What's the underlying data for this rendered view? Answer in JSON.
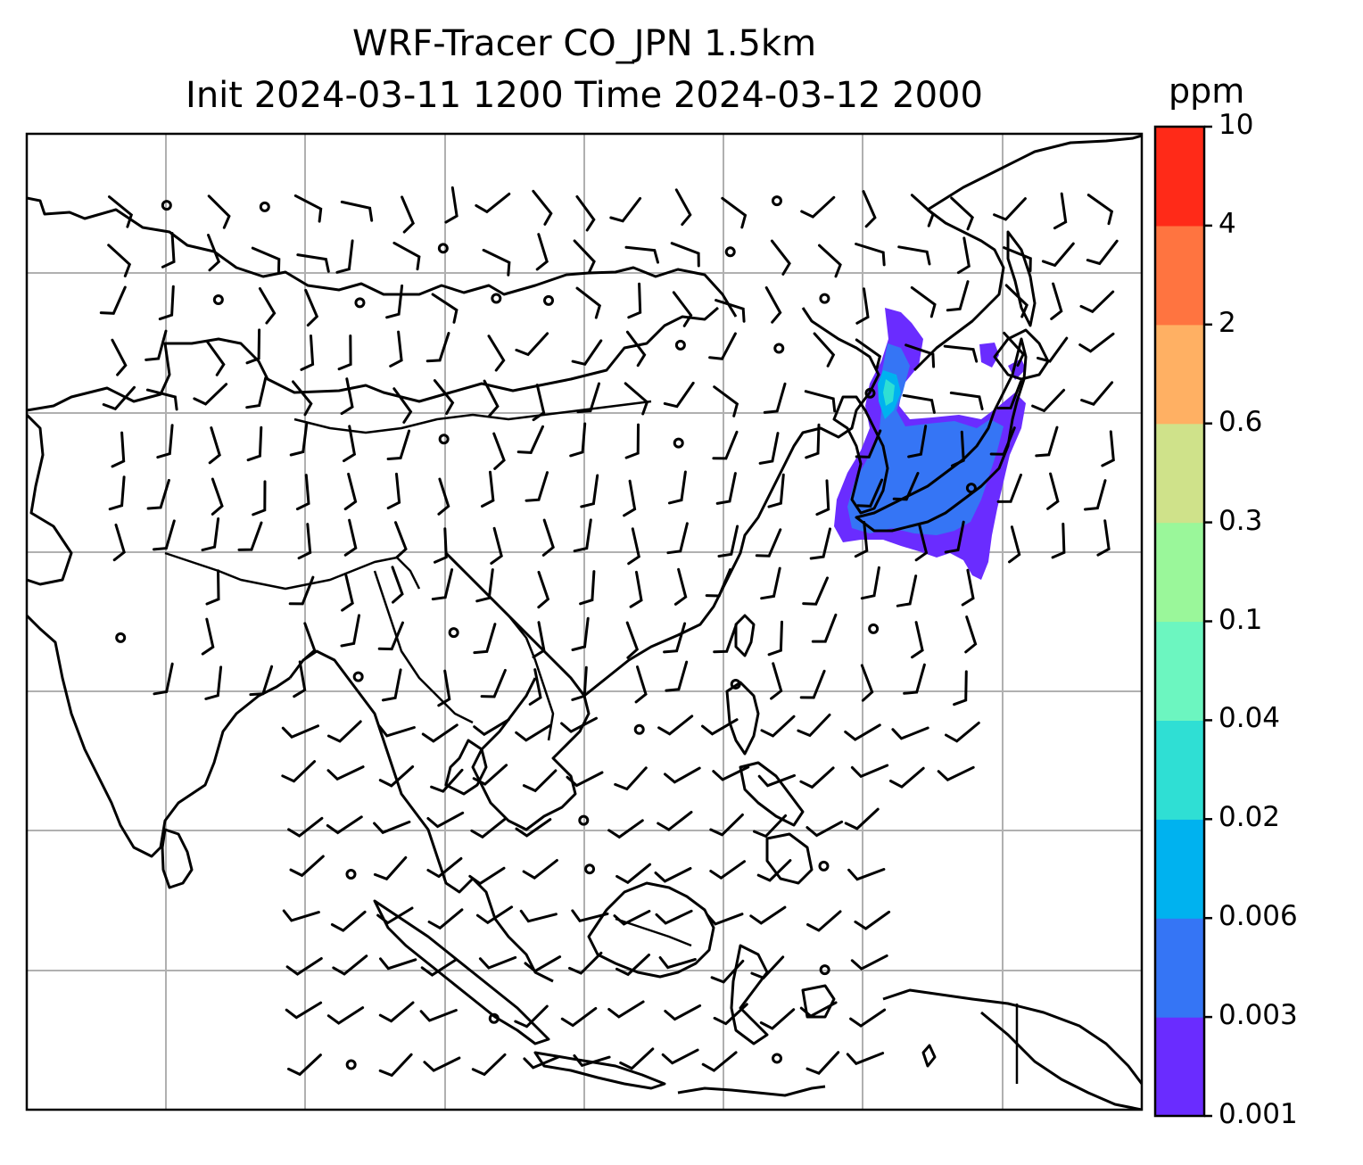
{
  "title": {
    "line1": "WRF-Tracer CO_JPN 1.5km",
    "line2": "Init 2024-03-11 1200 Time 2024-03-12 2000"
  },
  "colorbar": {
    "units": "ppm",
    "ticks": [
      "0.001",
      "0.003",
      "0.006",
      "0.02",
      "0.04",
      "0.1",
      "0.3",
      "0.6",
      "2",
      "4",
      "10"
    ],
    "colors": [
      "#6a2cff",
      "#3575f5",
      "#00b2ef",
      "#2fdfd4",
      "#6cf6c0",
      "#9af79a",
      "#cfe28a",
      "#ffb063",
      "#ff7440",
      "#ff2a18"
    ]
  },
  "map": {
    "region": "East and Southeast Asia",
    "gridlines": true,
    "frame_color": "#000000",
    "gridline_color": "#b0b0b0",
    "coastline_color": "#000000",
    "layers": [
      "coastlines",
      "country-borders",
      "wind-barbs",
      "tracer-concentration"
    ],
    "tracer_plume_location": "Japan and surrounding seas"
  }
}
